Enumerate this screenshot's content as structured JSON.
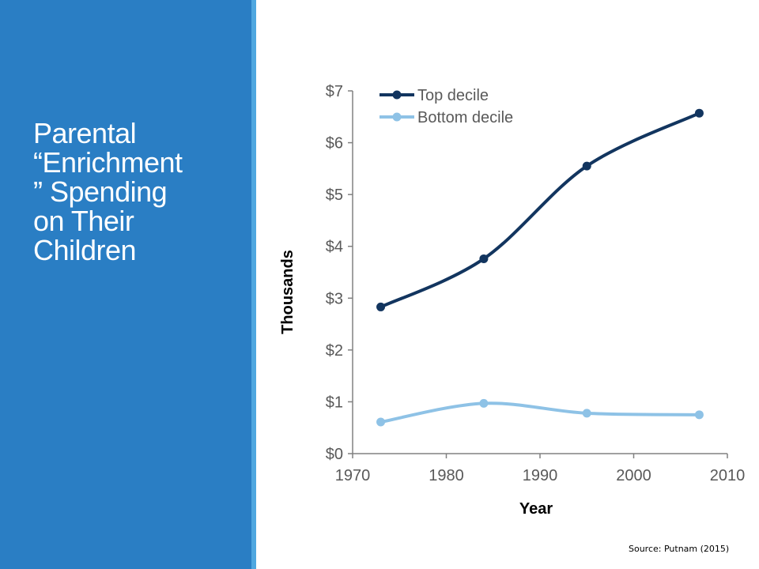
{
  "slide": {
    "title_lines": [
      "Parental",
      "“Enrichment",
      "” Spending",
      "on Their",
      "Children"
    ],
    "source": "Source: Putnam (2015)"
  },
  "colors": {
    "panel": "#2a7ec4",
    "panel_edge": "#4fa7e0",
    "top_decile": "#12355f",
    "bottom_decile": "#8ec2e6",
    "axis": "#808080",
    "tick_text": "#595959"
  },
  "chart_data": {
    "type": "line",
    "title": "",
    "xlabel": "Year",
    "ylabel": "Thousands",
    "xlim": [
      1970,
      2010
    ],
    "ylim": [
      0,
      7
    ],
    "x_ticks": [
      1970,
      1980,
      1990,
      2000,
      2010
    ],
    "y_ticks": [
      0,
      1,
      2,
      3,
      4,
      5,
      6,
      7
    ],
    "y_tick_labels": [
      "$0",
      "$1",
      "$2",
      "$3",
      "$4",
      "$5",
      "$6",
      "$7"
    ],
    "grid": false,
    "legend_position": "top-left",
    "series": [
      {
        "name": "Top decile",
        "color": "#12355f",
        "x": [
          1973,
          1984,
          1995,
          2007
        ],
        "y": [
          2.83,
          3.76,
          5.55,
          6.57
        ]
      },
      {
        "name": "Bottom decile",
        "color": "#8ec2e6",
        "x": [
          1973,
          1984,
          1995,
          2007
        ],
        "y": [
          0.61,
          0.97,
          0.78,
          0.75
        ]
      }
    ]
  }
}
